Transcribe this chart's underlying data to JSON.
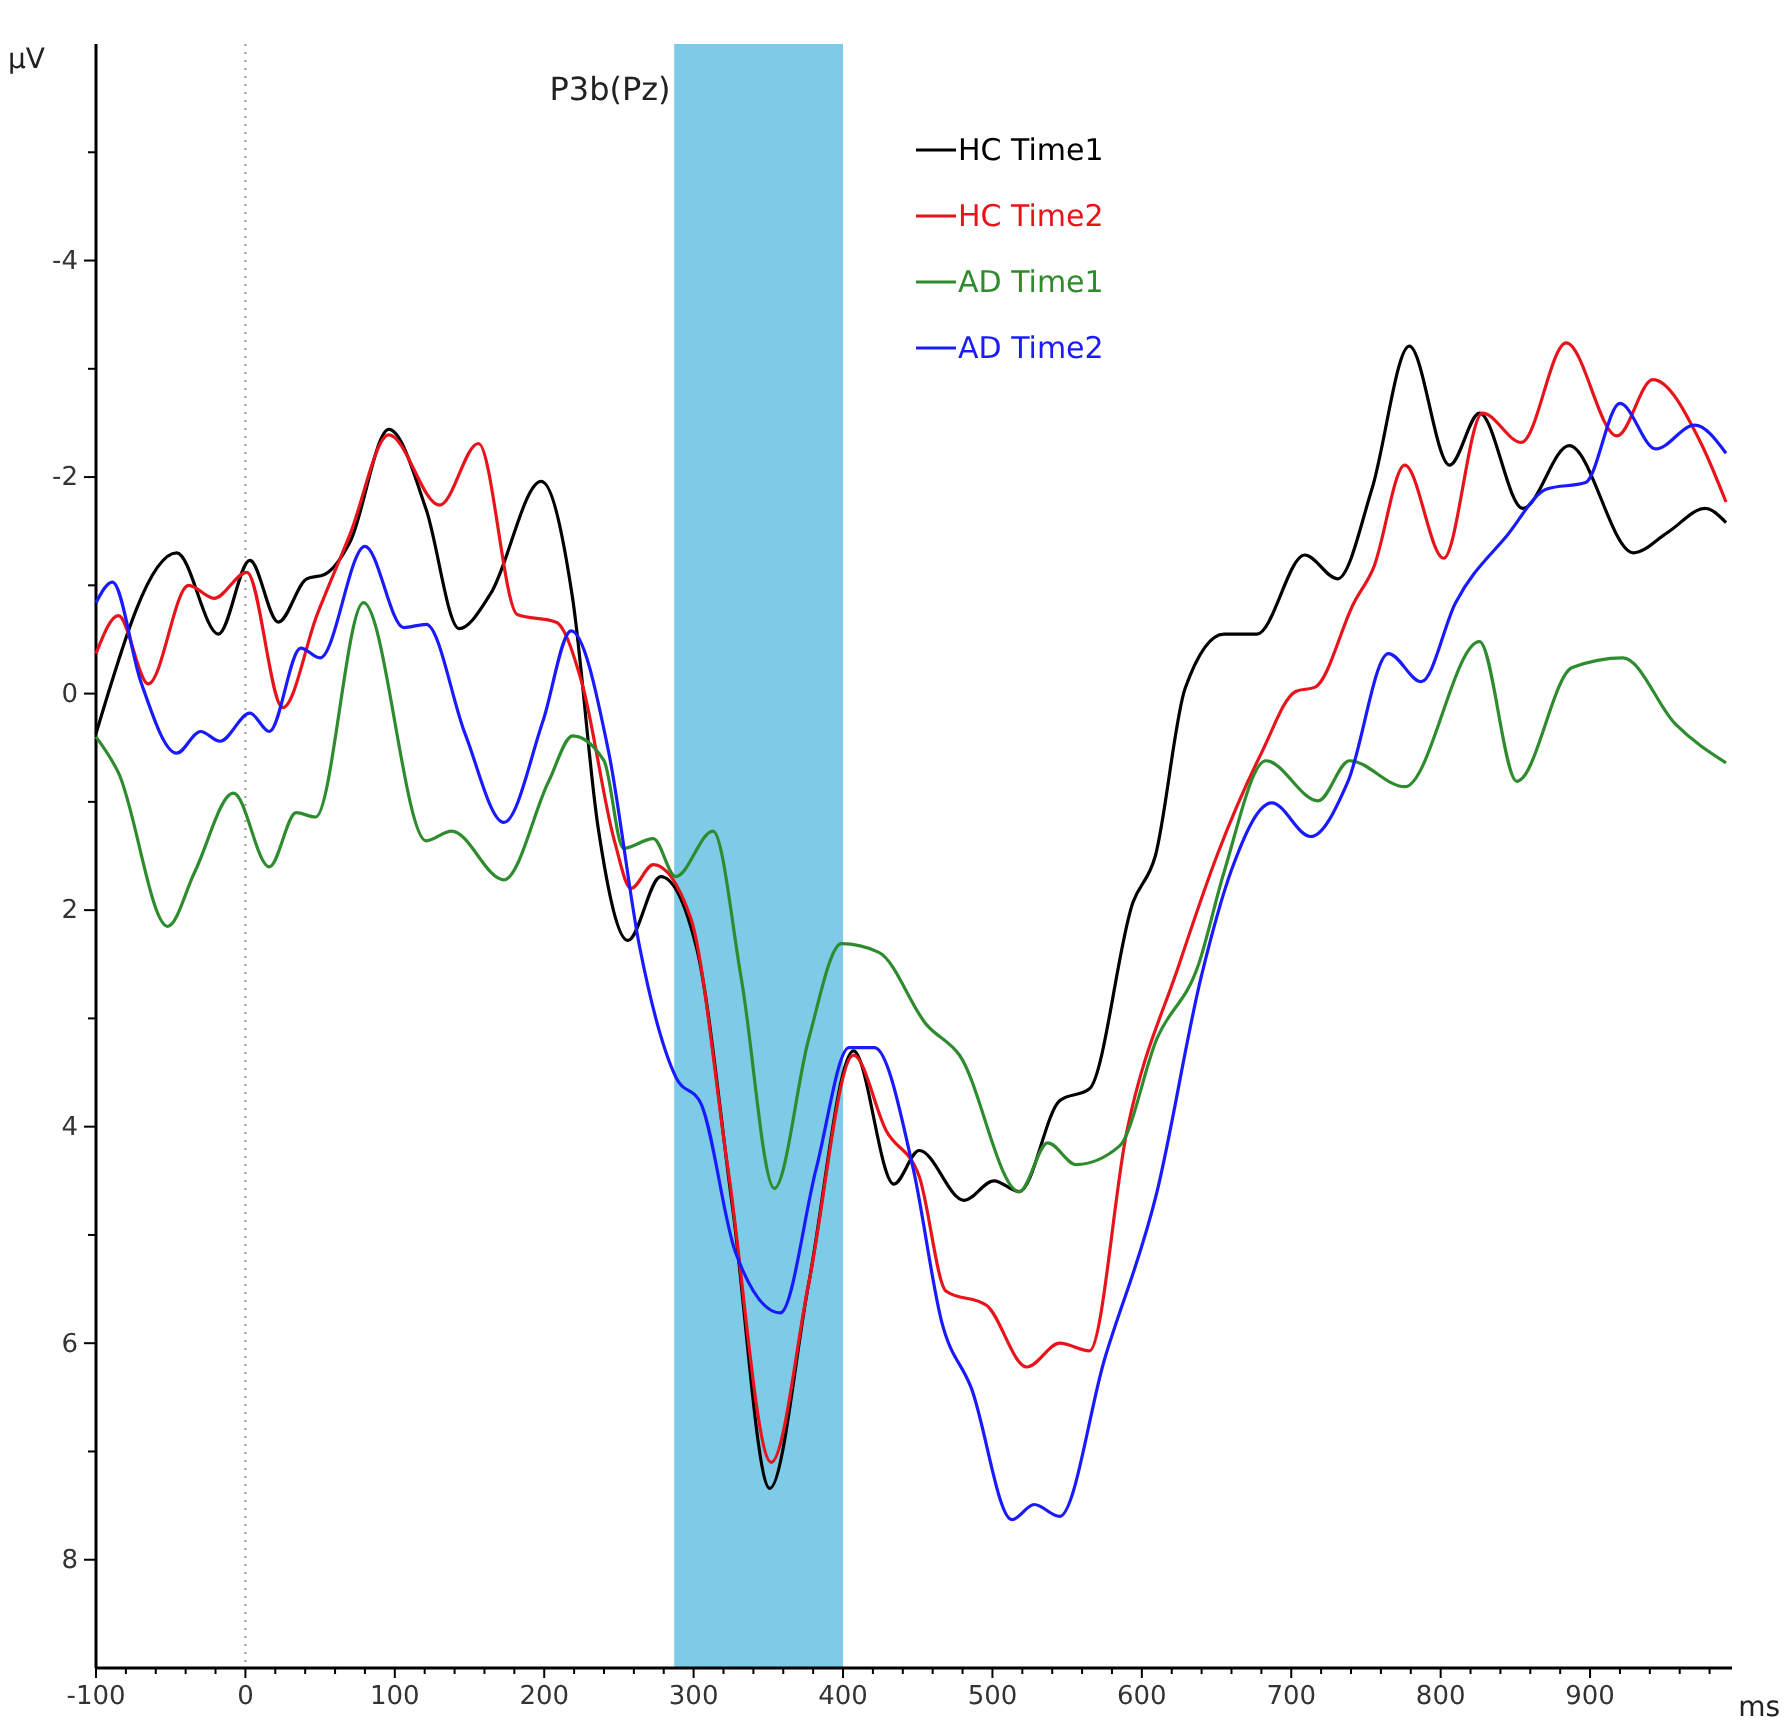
{
  "chart_data": {
    "type": "line",
    "title": "P3b(Pz)",
    "xlabel": "ms",
    "ylabel": "μV",
    "xlim": [
      -100,
      995
    ],
    "ylim": [
      9,
      -6
    ],
    "xticks": [
      -100,
      {
        "value": -80,
        "label": null
      },
      {
        "value": -60,
        "label": null
      },
      {
        "value": -40,
        "label": null
      },
      {
        "value": -20,
        "label": null
      },
      0,
      {
        "value": 20,
        "label": null
      },
      {
        "value": 40,
        "label": null
      },
      {
        "value": 60,
        "label": null
      },
      {
        "value": 80,
        "label": null
      },
      100,
      {
        "value": 120,
        "label": null
      },
      {
        "value": 140,
        "label": null
      },
      {
        "value": 160,
        "label": null
      },
      {
        "value": 180,
        "label": null
      },
      200,
      {
        "value": 220,
        "label": null
      },
      {
        "value": 240,
        "label": null
      },
      {
        "value": 260,
        "label": null
      },
      {
        "value": 280,
        "label": null
      },
      300,
      {
        "value": 320,
        "label": null
      },
      {
        "value": 340,
        "label": null
      },
      {
        "value": 360,
        "label": null
      },
      {
        "value": 380,
        "label": null
      },
      400,
      {
        "value": 420,
        "label": null
      },
      {
        "value": 440,
        "label": null
      },
      {
        "value": 460,
        "label": null
      },
      {
        "value": 480,
        "label": null
      },
      500,
      {
        "value": 520,
        "label": null
      },
      {
        "value": 540,
        "label": null
      },
      {
        "value": 560,
        "label": null
      },
      {
        "value": 580,
        "label": null
      },
      600,
      {
        "value": 620,
        "label": null
      },
      {
        "value": 640,
        "label": null
      },
      {
        "value": 660,
        "label": null
      },
      {
        "value": 680,
        "label": null
      },
      700,
      {
        "value": 720,
        "label": null
      },
      {
        "value": 740,
        "label": null
      },
      {
        "value": 760,
        "label": null
      },
      {
        "value": 780,
        "label": null
      },
      800,
      {
        "value": 820,
        "label": null
      },
      {
        "value": 840,
        "label": null
      },
      {
        "value": 860,
        "label": null
      },
      {
        "value": 880,
        "label": null
      },
      900,
      {
        "value": 920,
        "label": null
      },
      {
        "value": 940,
        "label": null
      },
      {
        "value": 960,
        "label": null
      },
      {
        "value": 980,
        "label": null
      }
    ],
    "yticks": [
      {
        "value": -5,
        "label": null
      },
      -4,
      {
        "value": -3,
        "label": null
      },
      -2,
      {
        "value": -1,
        "label": null
      },
      0,
      {
        "value": 1,
        "label": null
      },
      2,
      {
        "value": 3,
        "label": null
      },
      4,
      {
        "value": 5,
        "label": null
      },
      6,
      {
        "value": 7,
        "label": null
      },
      8
    ],
    "grid": false,
    "legend": "top",
    "marker": "none",
    "line_style": "solid",
    "ref_lines": [
      {
        "axis": "x",
        "value": 0,
        "color": "#999999",
        "line_style": "dotted"
      }
    ],
    "bands": [
      {
        "axis": "x",
        "from": 287,
        "to": 400,
        "color": "#7ecbe8"
      }
    ],
    "series": [
      {
        "name": "HC Time1",
        "color": "#000000",
        "x": [
          -100,
          -46,
          -18,
          3,
          22,
          41,
          53,
          70,
          96,
          121,
          143,
          164,
          198,
          219,
          236,
          256,
          278,
          302,
          326,
          351,
          377,
          407,
          434,
          451,
          481,
          501,
          518,
          545,
          565,
          594,
          609,
          629,
          655,
          677,
          709,
          731,
          754,
          779,
          806,
          826,
          855,
          886,
          929,
          952,
          977,
          991
        ],
        "values": [
          0.37,
          -1.3,
          -0.55,
          -1.23,
          -0.66,
          -1.06,
          -1.1,
          -1.4,
          -2.44,
          -1.7,
          -0.6,
          -0.92,
          -1.96,
          -0.88,
          1.23,
          2.28,
          1.69,
          2.35,
          4.74,
          7.34,
          5.45,
          3.3,
          4.53,
          4.22,
          4.68,
          4.5,
          4.6,
          3.76,
          3.65,
          1.93,
          1.5,
          -0.05,
          -0.55,
          -0.55,
          -1.28,
          -1.06,
          -1.89,
          -3.21,
          -2.11,
          -2.59,
          -1.71,
          -2.29,
          -1.3,
          -1.49,
          -1.71,
          -1.58
        ]
      },
      {
        "name": "HC Time2",
        "color": "#e8141c",
        "x": [
          -100,
          -85,
          -65,
          -38,
          -21,
          1,
          25,
          48,
          70,
          96,
          130,
          156,
          182,
          208,
          225,
          247,
          258,
          273,
          298,
          323,
          352,
          377,
          407,
          429,
          451,
          469,
          496,
          523,
          545,
          565,
          590,
          625,
          651,
          680,
          703,
          716,
          742,
          755,
          776,
          802,
          828,
          854,
          884,
          918,
          942,
          974,
          991
        ],
        "values": [
          -0.37,
          -0.72,
          -0.09,
          -1.0,
          -0.88,
          -1.12,
          0.13,
          -0.73,
          -1.47,
          -2.39,
          -1.74,
          -2.31,
          -0.73,
          -0.66,
          -0.11,
          1.36,
          1.8,
          1.58,
          2.07,
          4.39,
          7.1,
          5.45,
          3.34,
          4.04,
          4.46,
          5.52,
          5.65,
          6.22,
          6.0,
          6.07,
          4.04,
          2.5,
          1.47,
          0.55,
          -0.02,
          -0.06,
          -0.84,
          -1.16,
          -2.11,
          -1.25,
          -2.59,
          -2.32,
          -3.24,
          -2.38,
          -2.9,
          -2.32,
          -1.77
        ]
      },
      {
        "name": "AD Time1",
        "color": "#2e8b2e",
        "x": [
          -100,
          -85,
          -52,
          -34,
          -8,
          16,
          34,
          47,
          79,
          121,
          138,
          173,
          203,
          219,
          240,
          253,
          273,
          288,
          313,
          332,
          354,
          377,
          399,
          424,
          456,
          478,
          518,
          537,
          556,
          585,
          610,
          638,
          655,
          683,
          718,
          739,
          776,
          826,
          851,
          888,
          922,
          957,
          991
        ],
        "values": [
          0.4,
          0.73,
          2.15,
          1.65,
          0.92,
          1.6,
          1.1,
          1.14,
          -0.84,
          1.36,
          1.27,
          1.72,
          0.81,
          0.39,
          0.62,
          1.43,
          1.34,
          1.69,
          1.27,
          2.64,
          4.57,
          3.19,
          2.31,
          2.39,
          3.06,
          3.34,
          4.6,
          4.15,
          4.35,
          4.18,
          3.19,
          2.5,
          1.65,
          0.62,
          0.99,
          0.62,
          0.86,
          -0.48,
          0.81,
          -0.24,
          -0.33,
          0.28,
          0.64
        ]
      },
      {
        "name": "AD Time2",
        "color": "#1a1aff",
        "x": [
          -100,
          -89,
          -70,
          -46,
          -30,
          -17,
          3,
          16,
          37,
          50,
          80,
          106,
          121,
          147,
          173,
          199,
          218,
          243,
          264,
          288,
          305,
          328,
          358,
          382,
          404,
          421,
          447,
          466,
          486,
          513,
          528,
          545,
          575,
          610,
          640,
          660,
          687,
          713,
          738,
          765,
          787,
          810,
          845,
          871,
          897,
          920,
          944,
          970,
          991
        ],
        "values": [
          -0.84,
          -1.03,
          -0.11,
          0.55,
          0.35,
          0.44,
          0.18,
          0.35,
          -0.42,
          -0.33,
          -1.36,
          -0.61,
          -0.64,
          0.37,
          1.19,
          0.26,
          -0.58,
          0.53,
          2.35,
          3.54,
          3.79,
          5.16,
          5.72,
          4.39,
          3.27,
          3.27,
          4.39,
          5.8,
          6.42,
          7.63,
          7.49,
          7.6,
          6.15,
          4.61,
          2.6,
          1.63,
          1.01,
          1.32,
          0.81,
          -0.37,
          -0.11,
          -0.84,
          -1.47,
          -1.89,
          -1.95,
          -2.68,
          -2.26,
          -2.48,
          -2.22
        ]
      }
    ]
  }
}
